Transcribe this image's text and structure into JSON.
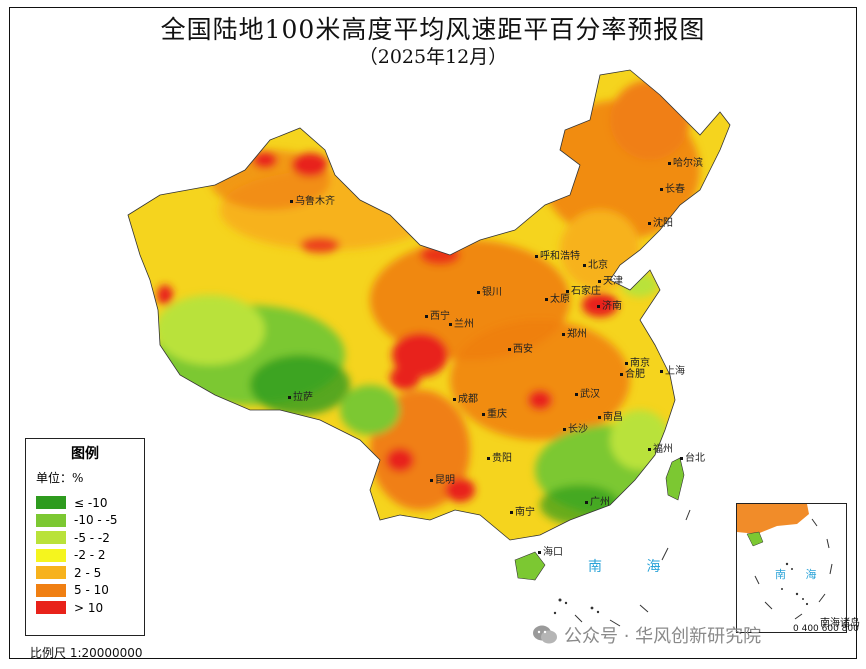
{
  "title": "全国陆地100米高度平均风速距平百分率预报图",
  "subtitle": "（2025年12月）",
  "legend": {
    "title": "图例",
    "unit": "单位：%",
    "items": [
      {
        "label": "≤ -10",
        "color": "#2e9b1e"
      },
      {
        "label": "-10 - -5",
        "color": "#7cc832"
      },
      {
        "label": "-5 - -2",
        "color": "#b9e23a"
      },
      {
        "label": "-2 - 2",
        "color": "#f5f51e"
      },
      {
        "label": "2 - 5",
        "color": "#f7b21c"
      },
      {
        "label": "5 - 10",
        "color": "#f07f12"
      },
      {
        "label": "> 10",
        "color": "#e8221a"
      }
    ]
  },
  "scale": "比例尺 1:20000000",
  "inset": {
    "label": "南海诸岛",
    "scale": "0 400 600 800"
  },
  "sea_label": "南 海",
  "inset_sea_label": "南 海",
  "watermark": "公众号 · 华风创新研究院",
  "cities": [
    "哈尔滨",
    "长春",
    "沈阳",
    "乌鲁木齐",
    "呼和浩特",
    "北京",
    "天津",
    "银川",
    "太原",
    "石家庄",
    "济南",
    "西宁",
    "兰州",
    "郑州",
    "西安",
    "合肥",
    "南京",
    "上海",
    "成都",
    "武汉",
    "拉萨",
    "重庆",
    "南昌",
    "长沙",
    "福州",
    "台北",
    "贵阳",
    "昆明",
    "南宁",
    "广州",
    "海口"
  ]
}
